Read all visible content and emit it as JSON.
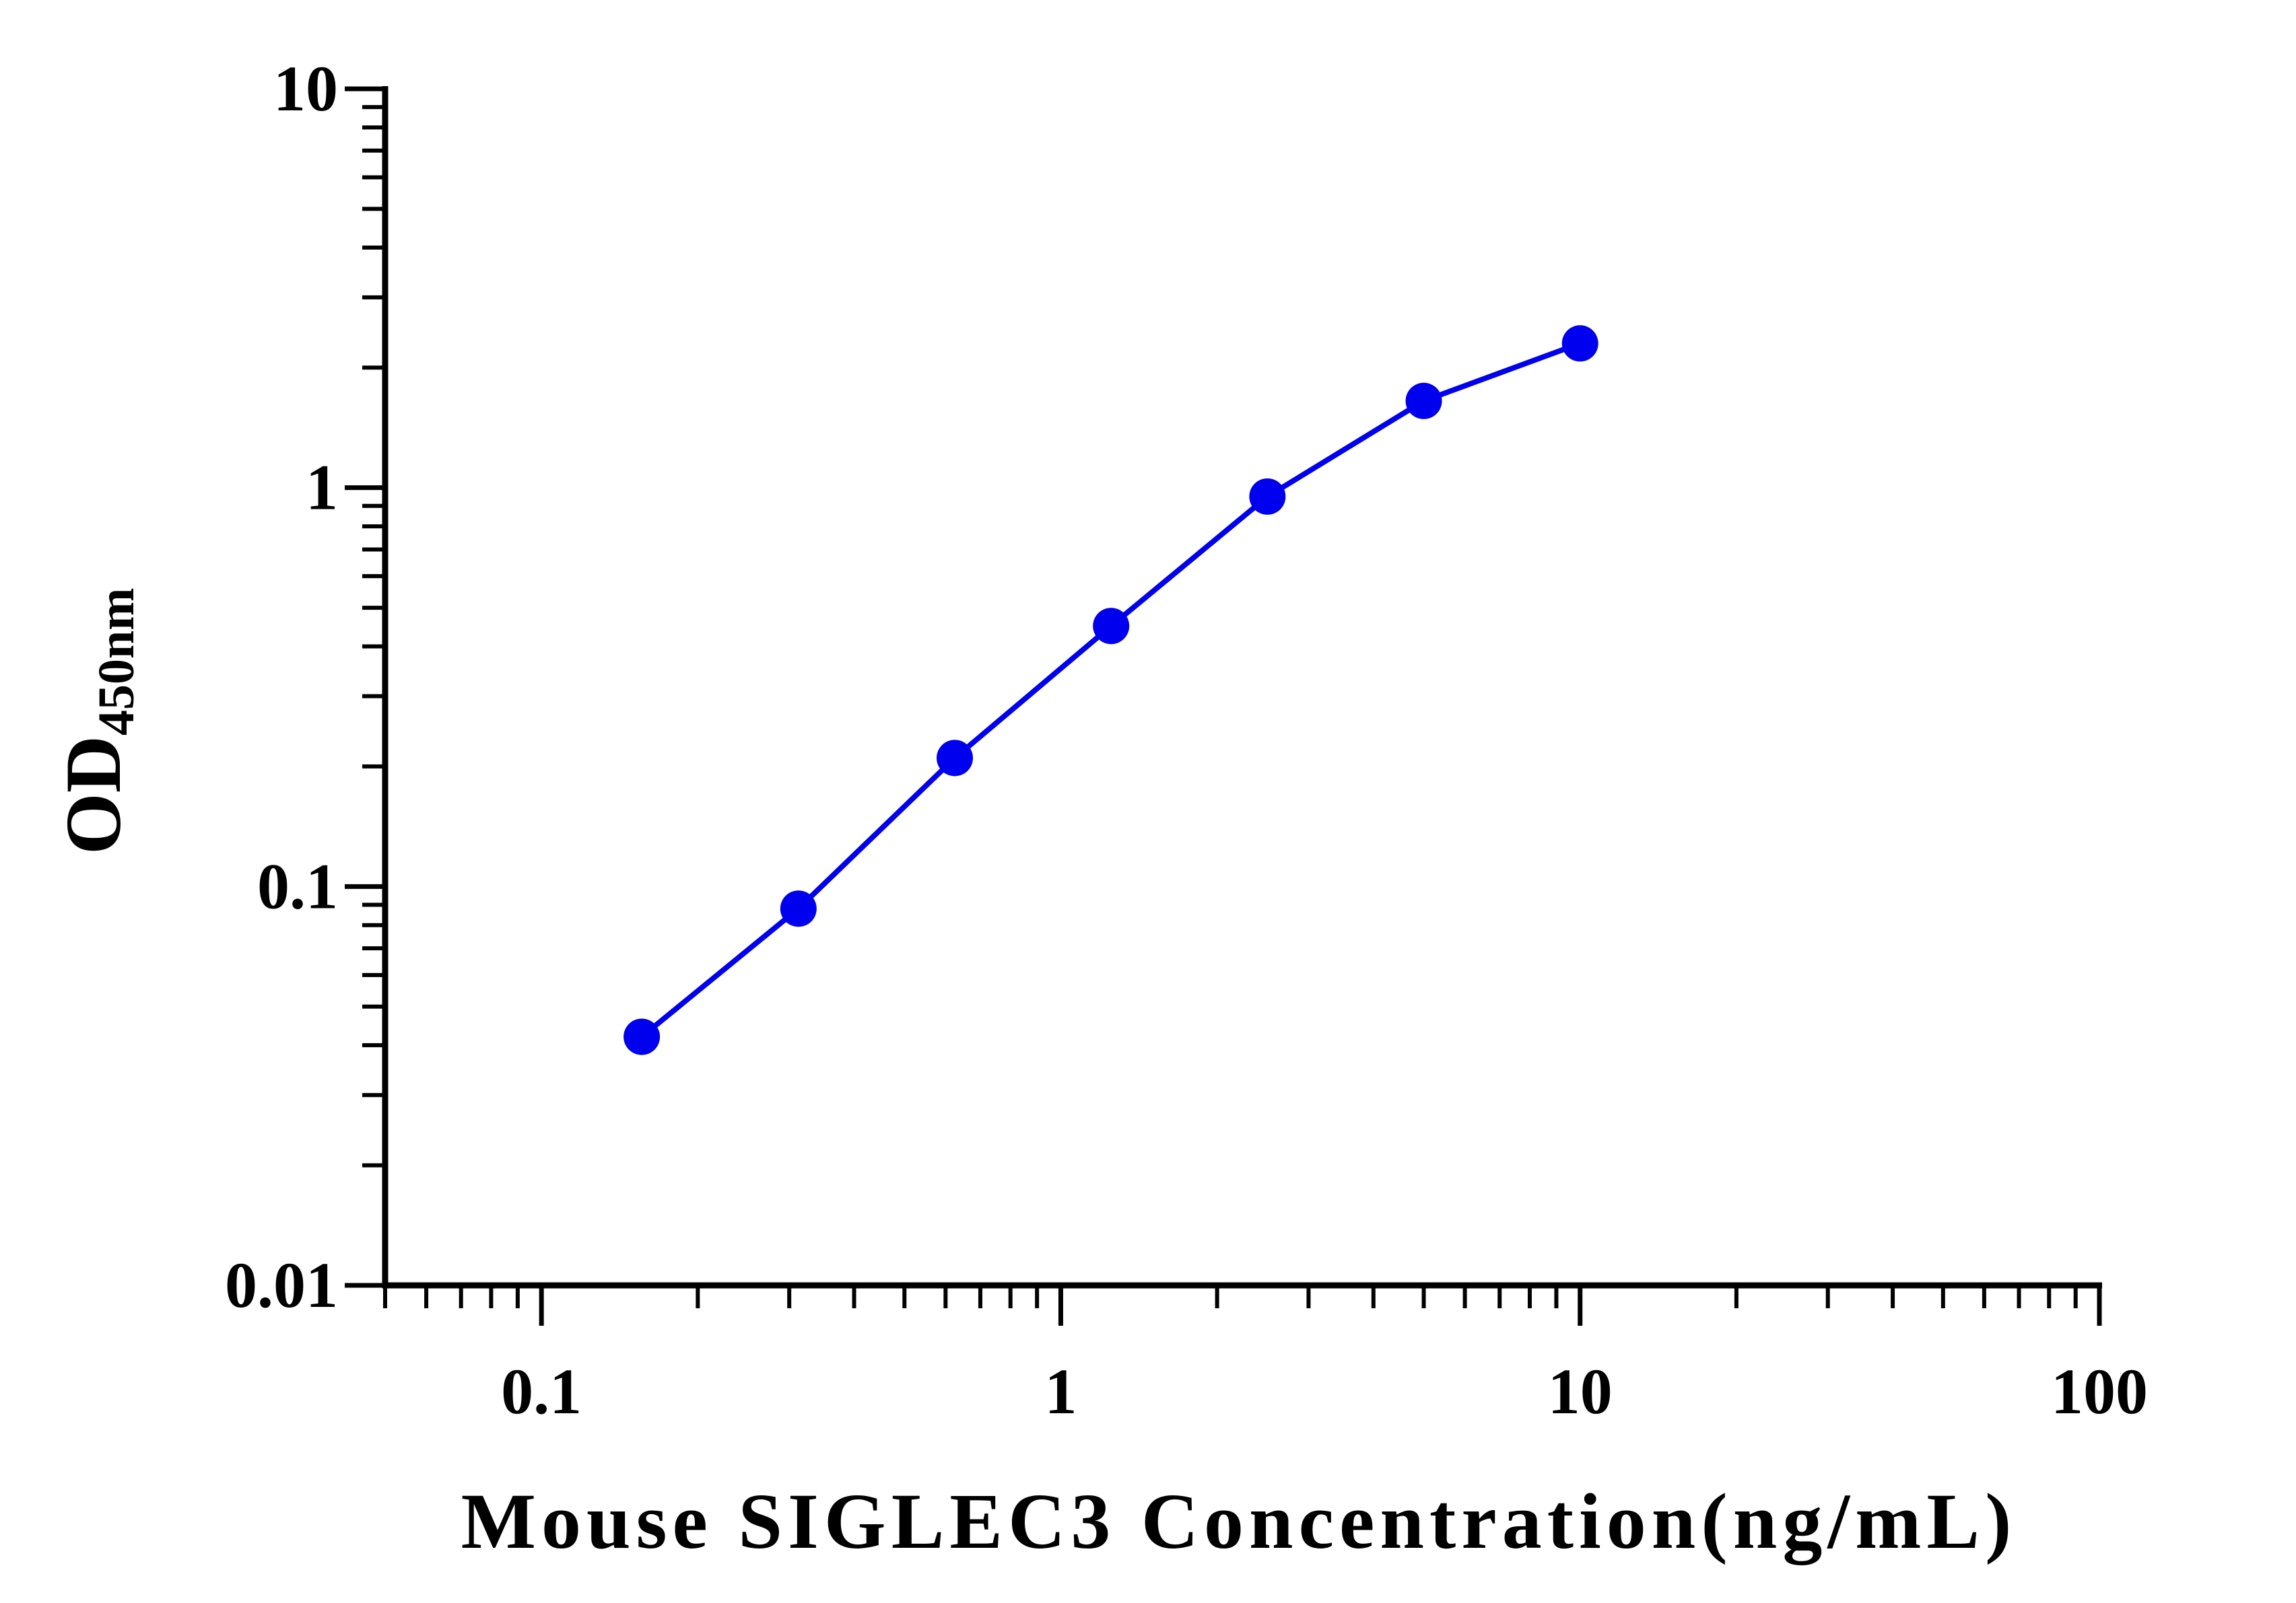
{
  "chart_data": {
    "type": "line",
    "title": "",
    "xlabel": "Mouse SIGLEC3 Concentration(ng/mL)",
    "ylabel": "OD",
    "ylabel_subscript": "450nm",
    "xscale": "log",
    "yscale": "log",
    "xlim": [
      0.05,
      100
    ],
    "ylim": [
      0.01,
      10
    ],
    "x_tick_labels": [
      "0.1",
      "1",
      "10",
      "100"
    ],
    "y_tick_labels": [
      "0.01",
      "0.1",
      "1",
      "10"
    ],
    "grid": false,
    "legend": "none",
    "series": [
      {
        "color": "#0000EE",
        "x": [
          0.156,
          0.3125,
          0.625,
          1.25,
          2.5,
          5,
          10
        ],
        "y": [
          0.042,
          0.088,
          0.21,
          0.45,
          0.95,
          1.65,
          2.3
        ]
      }
    ]
  }
}
